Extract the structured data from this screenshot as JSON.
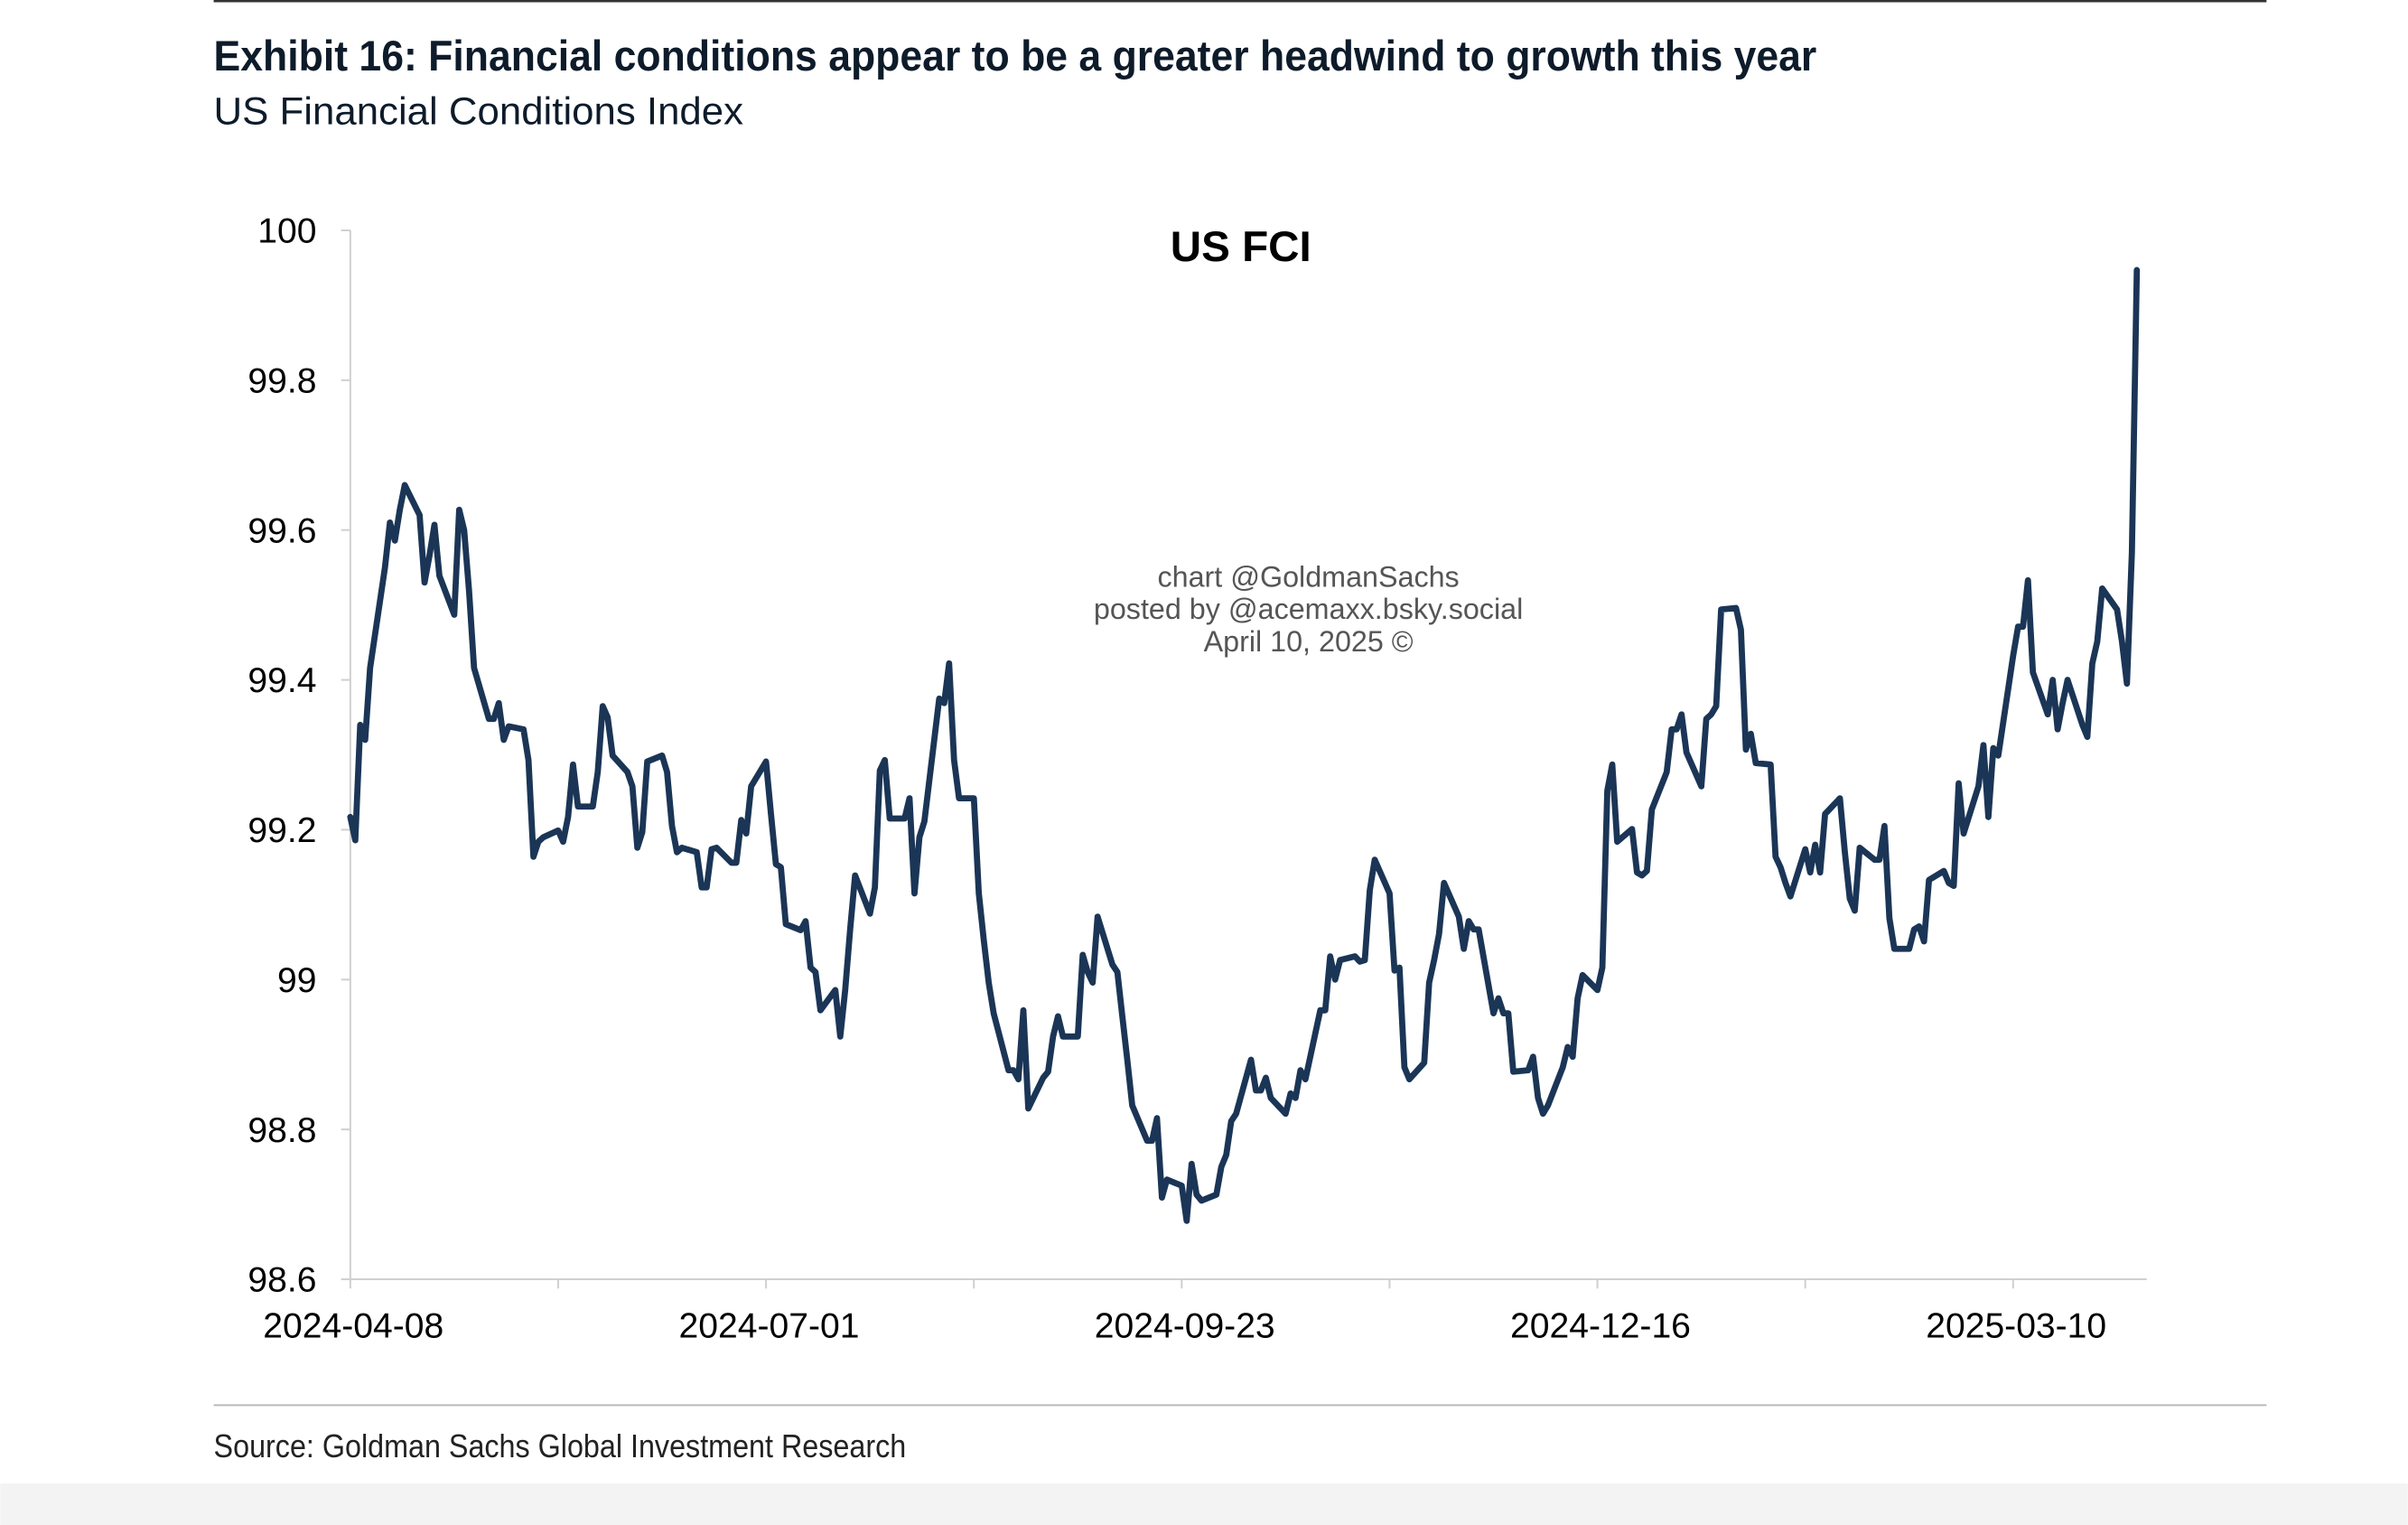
{
  "chart_data": {
    "type": "line",
    "title": "Exhibit 16: Financial conditions appear to be a greater headwind to growth this year",
    "subtitle": "US Financial Conditions Index",
    "chart_title": "US FCI",
    "watermark": [
      "chart @GoldmanSachs",
      "posted by @acemaxx.bsky.social",
      "April 10, 2025 ©"
    ],
    "source": "Source: Goldman Sachs Global Investment Research",
    "color": "#1b3556",
    "xlim": [
      "2024-04-08",
      "2025-04-06"
    ],
    "xticks": [
      "2024-04-08",
      "2024-07-01",
      "2024-09-23",
      "2024-12-16",
      "2025-03-10"
    ],
    "xminorticks": [
      "2024-05-20",
      "2024-08-12",
      "2024-11-04",
      "2025-01-27"
    ],
    "ylim": [
      98.6,
      100
    ],
    "yticks": [
      98.6,
      98.8,
      99,
      99.2,
      99.4,
      99.6,
      99.8,
      100
    ],
    "x": [
      "2024-04-08",
      "2024-04-09",
      "2024-04-10",
      "2024-04-11",
      "2024-04-12",
      "2024-04-15",
      "2024-04-16",
      "2024-04-17",
      "2024-04-18",
      "2024-04-19",
      "2024-04-22",
      "2024-04-23",
      "2024-04-24",
      "2024-04-25",
      "2024-04-26",
      "2024-04-29",
      "2024-04-30",
      "2024-05-01",
      "2024-05-02",
      "2024-05-03",
      "2024-05-06",
      "2024-05-07",
      "2024-05-08",
      "2024-05-09",
      "2024-05-10",
      "2024-05-13",
      "2024-05-14",
      "2024-05-15",
      "2024-05-16",
      "2024-05-17",
      "2024-05-20",
      "2024-05-21",
      "2024-05-22",
      "2024-05-23",
      "2024-05-24",
      "2024-05-27",
      "2024-05-28",
      "2024-05-29",
      "2024-05-30",
      "2024-05-31",
      "2024-06-03",
      "2024-06-04",
      "2024-06-05",
      "2024-06-06",
      "2024-06-07",
      "2024-06-10",
      "2024-06-11",
      "2024-06-12",
      "2024-06-13",
      "2024-06-14",
      "2024-06-17",
      "2024-06-18",
      "2024-06-19",
      "2024-06-20",
      "2024-06-21",
      "2024-06-24",
      "2024-06-25",
      "2024-06-26",
      "2024-06-27",
      "2024-06-28",
      "2024-07-01",
      "2024-07-02",
      "2024-07-03",
      "2024-07-04",
      "2024-07-05",
      "2024-07-08",
      "2024-07-09",
      "2024-07-10",
      "2024-07-11",
      "2024-07-12",
      "2024-07-15",
      "2024-07-16",
      "2024-07-17",
      "2024-07-18",
      "2024-07-19",
      "2024-07-22",
      "2024-07-23",
      "2024-07-24",
      "2024-07-25",
      "2024-07-26",
      "2024-07-29",
      "2024-07-30",
      "2024-07-31",
      "2024-08-01",
      "2024-08-02",
      "2024-08-05",
      "2024-08-06",
      "2024-08-07",
      "2024-08-08",
      "2024-08-09",
      "2024-08-12",
      "2024-08-13",
      "2024-08-14",
      "2024-08-15",
      "2024-08-16",
      "2024-08-19",
      "2024-08-20",
      "2024-08-21",
      "2024-08-22",
      "2024-08-23",
      "2024-08-26",
      "2024-08-27",
      "2024-08-28",
      "2024-08-29",
      "2024-08-30",
      "2024-09-02",
      "2024-09-03",
      "2024-09-04",
      "2024-09-05",
      "2024-09-06",
      "2024-09-09",
      "2024-09-10",
      "2024-09-11",
      "2024-09-12",
      "2024-09-13",
      "2024-09-16",
      "2024-09-17",
      "2024-09-18",
      "2024-09-19",
      "2024-09-20",
      "2024-09-23",
      "2024-09-24",
      "2024-09-25",
      "2024-09-26",
      "2024-09-27",
      "2024-09-30",
      "2024-10-01",
      "2024-10-02",
      "2024-10-03",
      "2024-10-04",
      "2024-10-07",
      "2024-10-08",
      "2024-10-09",
      "2024-10-10",
      "2024-10-11",
      "2024-10-14",
      "2024-10-15",
      "2024-10-16",
      "2024-10-17",
      "2024-10-18",
      "2024-10-21",
      "2024-10-22",
      "2024-10-23",
      "2024-10-24",
      "2024-10-25",
      "2024-10-28",
      "2024-10-29",
      "2024-10-30",
      "2024-10-31",
      "2024-11-01",
      "2024-11-04",
      "2024-11-05",
      "2024-11-06",
      "2024-11-07",
      "2024-11-08",
      "2024-11-11",
      "2024-11-12",
      "2024-11-13",
      "2024-11-14",
      "2024-11-15",
      "2024-11-18",
      "2024-11-19",
      "2024-11-20",
      "2024-11-21",
      "2024-11-22",
      "2024-11-25",
      "2024-11-26",
      "2024-11-27",
      "2024-11-28",
      "2024-11-29",
      "2024-12-02",
      "2024-12-03",
      "2024-12-04",
      "2024-12-05",
      "2024-12-06",
      "2024-12-09",
      "2024-12-10",
      "2024-12-11",
      "2024-12-12",
      "2024-12-13",
      "2024-12-16",
      "2024-12-17",
      "2024-12-18",
      "2024-12-19",
      "2024-12-20",
      "2024-12-23",
      "2024-12-24",
      "2024-12-25",
      "2024-12-26",
      "2024-12-27",
      "2024-12-30",
      "2024-12-31",
      "2025-01-01",
      "2025-01-02",
      "2025-01-03",
      "2025-01-06",
      "2025-01-07",
      "2025-01-08",
      "2025-01-09",
      "2025-01-10",
      "2025-01-13",
      "2025-01-14",
      "2025-01-15",
      "2025-01-16",
      "2025-01-17",
      "2025-01-20",
      "2025-01-21",
      "2025-01-22",
      "2025-01-23",
      "2025-01-24",
      "2025-01-27",
      "2025-01-28",
      "2025-01-29",
      "2025-01-30",
      "2025-01-31",
      "2025-02-03",
      "2025-02-04",
      "2025-02-05",
      "2025-02-06",
      "2025-02-07",
      "2025-02-10",
      "2025-02-11",
      "2025-02-12",
      "2025-02-13",
      "2025-02-14",
      "2025-02-17",
      "2025-02-18",
      "2025-02-19",
      "2025-02-20",
      "2025-02-21",
      "2025-02-24",
      "2025-02-25",
      "2025-02-26",
      "2025-02-27",
      "2025-02-28",
      "2025-03-03",
      "2025-03-04",
      "2025-03-05",
      "2025-03-06",
      "2025-03-07",
      "2025-03-10",
      "2025-03-11",
      "2025-03-12",
      "2025-03-13",
      "2025-03-14",
      "2025-03-17",
      "2025-03-18",
      "2025-03-19",
      "2025-03-20",
      "2025-03-21",
      "2025-03-24",
      "2025-03-25",
      "2025-03-26",
      "2025-03-27",
      "2025-03-28",
      "2025-03-31",
      "2025-04-01",
      "2025-04-02",
      "2025-04-03",
      "2025-04-04"
    ],
    "values": [
      99.217,
      99.186,
      99.34,
      99.32,
      99.416,
      99.55,
      99.61,
      99.586,
      99.627,
      99.66,
      99.62,
      99.53,
      99.566,
      99.607,
      99.539,
      99.487,
      99.627,
      99.6,
      99.518,
      99.416,
      99.348,
      99.348,
      99.369,
      99.32,
      99.338,
      99.334,
      99.293,
      99.164,
      99.184,
      99.19,
      99.199,
      99.184,
      99.217,
      99.287,
      99.231,
      99.231,
      99.277,
      99.365,
      99.35,
      99.299,
      99.277,
      99.258,
      99.176,
      99.197,
      99.291,
      99.299,
      99.277,
      99.205,
      99.17,
      99.176,
      99.17,
      99.123,
      99.123,
      99.174,
      99.176,
      99.156,
      99.156,
      99.213,
      99.195,
      99.258,
      99.291,
      99.221,
      99.154,
      99.15,
      99.074,
      99.066,
      99.078,
      99.016,
      99.01,
      98.959,
      98.986,
      98.924,
      98.986,
      99.067,
      99.139,
      99.088,
      99.123,
      99.279,
      99.293,
      99.215,
      99.215,
      99.242,
      99.115,
      99.19,
      99.211,
      99.375,
      99.369,
      99.422,
      99.293,
      99.242,
      99.242,
      99.115,
      99.053,
      98.996,
      98.955,
      98.879,
      98.879,
      98.867,
      98.959,
      98.828,
      98.869,
      98.877,
      98.924,
      98.951,
      98.924,
      98.924,
      99.033,
      99.01,
      98.996,
      99.084,
      99.02,
      99.01,
      98.951,
      98.893,
      98.832,
      98.785,
      98.785,
      98.815,
      98.709,
      98.733,
      98.725,
      98.678,
      98.754,
      98.713,
      98.705,
      98.713,
      98.75,
      98.766,
      98.811,
      98.821,
      98.893,
      98.852,
      98.852,
      98.869,
      98.842,
      98.821,
      98.848,
      98.842,
      98.879,
      98.867,
      98.959,
      98.959,
      99.031,
      99.0,
      99.026,
      99.031,
      99.024,
      99.026,
      99.119,
      99.16,
      99.115,
      99.012,
      99.016,
      98.883,
      98.867,
      98.889,
      98.996,
      99.026,
      99.061,
      99.129,
      99.084,
      99.041,
      99.078,
      99.067,
      99.067,
      98.955,
      98.975,
      98.955,
      98.955,
      98.877,
      98.879,
      98.897,
      98.842,
      98.821,
      98.832,
      98.883,
      98.91,
      98.897,
      98.975,
      99.006,
      98.986,
      99.016,
      99.252,
      99.287,
      99.184,
      99.201,
      99.143,
      99.139,
      99.145,
      99.227,
      99.277,
      99.334,
      99.334,
      99.354,
      99.303,
      99.258,
      99.348,
      99.354,
      99.365,
      99.494,
      99.496,
      99.467,
      99.307,
      99.328,
      99.289,
      99.287,
      99.164,
      99.15,
      99.129,
      99.111,
      99.174,
      99.143,
      99.18,
      99.143,
      99.221,
      99.242,
      99.17,
      99.108,
      99.092,
      99.176,
      99.16,
      99.16,
      99.205,
      99.082,
      99.041,
      99.041,
      99.067,
      99.071,
      99.051,
      99.133,
      99.145,
      99.129,
      99.125,
      99.262,
      99.195,
      99.258,
      99.313,
      99.217,
      99.309,
      99.299,
      99.432,
      99.471,
      99.471,
      99.533,
      99.41,
      99.354,
      99.4,
      99.334,
      99.369,
      99.4,
      99.34,
      99.324,
      99.422,
      99.451,
      99.522,
      99.494,
      99.451,
      99.395,
      99.57,
      99.947
    ]
  }
}
